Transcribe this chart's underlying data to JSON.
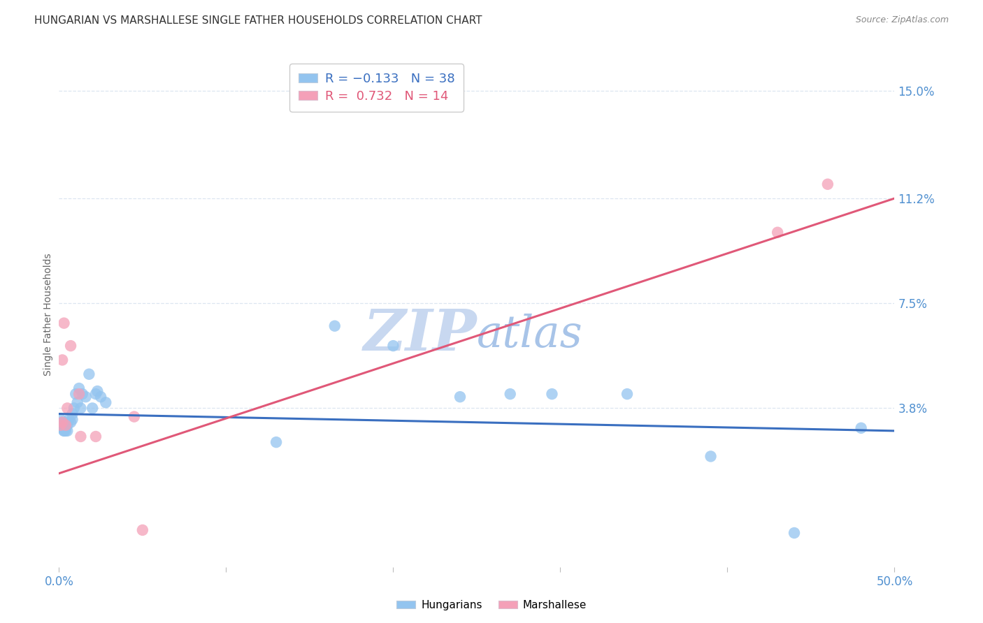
{
  "title": "HUNGARIAN VS MARSHALLESE SINGLE FATHER HOUSEHOLDS CORRELATION CHART",
  "source": "Source: ZipAtlas.com",
  "ylabel": "Single Father Households",
  "ytick_labels": [
    "3.8%",
    "7.5%",
    "11.2%",
    "15.0%"
  ],
  "ytick_values": [
    0.038,
    0.075,
    0.112,
    0.15
  ],
  "xlim": [
    0.0,
    0.5
  ],
  "ylim": [
    -0.018,
    0.16
  ],
  "hungarians_x": [
    0.001,
    0.002,
    0.002,
    0.003,
    0.003,
    0.003,
    0.004,
    0.004,
    0.004,
    0.005,
    0.005,
    0.006,
    0.007,
    0.008,
    0.008,
    0.009,
    0.01,
    0.011,
    0.012,
    0.013,
    0.014,
    0.016,
    0.018,
    0.02,
    0.022,
    0.023,
    0.025,
    0.028,
    0.13,
    0.165,
    0.2,
    0.24,
    0.27,
    0.295,
    0.34,
    0.39,
    0.44,
    0.48
  ],
  "hungarians_y": [
    0.034,
    0.033,
    0.031,
    0.03,
    0.032,
    0.03,
    0.031,
    0.033,
    0.03,
    0.032,
    0.03,
    0.034,
    0.033,
    0.036,
    0.034,
    0.038,
    0.043,
    0.04,
    0.045,
    0.038,
    0.043,
    0.042,
    0.05,
    0.038,
    0.043,
    0.044,
    0.042,
    0.04,
    0.026,
    0.067,
    0.06,
    0.042,
    0.043,
    0.043,
    0.043,
    0.021,
    -0.006,
    0.031
  ],
  "marshallese_x": [
    0.001,
    0.002,
    0.002,
    0.003,
    0.004,
    0.005,
    0.007,
    0.012,
    0.013,
    0.022,
    0.045,
    0.05,
    0.43,
    0.46
  ],
  "marshallese_y": [
    0.032,
    0.033,
    0.055,
    0.068,
    0.032,
    0.038,
    0.06,
    0.043,
    0.028,
    0.028,
    0.035,
    -0.005,
    0.1,
    0.117
  ],
  "blue_line_x": [
    0.0,
    0.5
  ],
  "blue_line_y": [
    0.036,
    0.03
  ],
  "pink_line_x": [
    0.0,
    0.5
  ],
  "pink_line_y": [
    0.015,
    0.112
  ],
  "blue_dot_color": "#93c4ef",
  "pink_dot_color": "#f4a0b8",
  "blue_line_color": "#3a6fc0",
  "pink_line_color": "#e05878",
  "background_color": "#ffffff",
  "grid_color": "#dce6f0",
  "title_fontsize": 11,
  "source_fontsize": 9,
  "axis_label_fontsize": 10,
  "tick_fontsize": 12,
  "legend_fontsize": 13,
  "watermark_zip": "ZIP",
  "watermark_atlas": "atlas",
  "watermark_color_zip": "#c8d8f0",
  "watermark_color_atlas": "#a8c4e8",
  "watermark_fontsize": 60
}
